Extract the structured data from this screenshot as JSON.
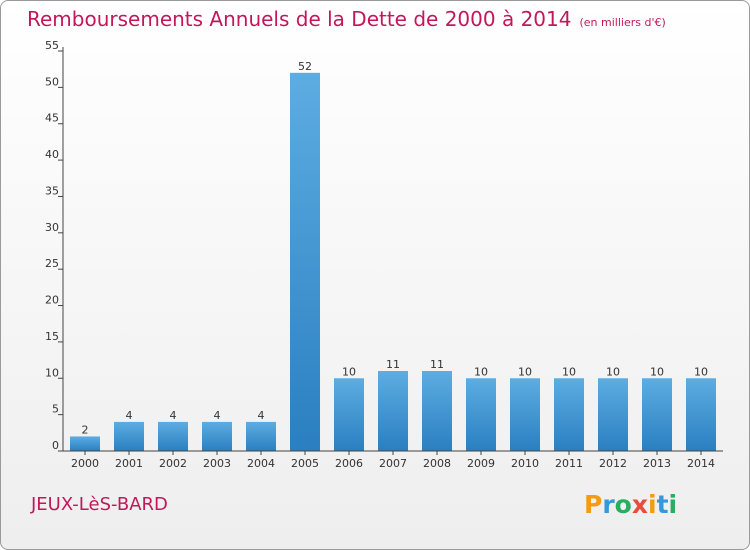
{
  "chart_data": {
    "type": "bar",
    "title": "Remboursements Annuels de la Dette de 2000 à 2014",
    "unit_note": "(en milliers d'€)",
    "categories": [
      "2000",
      "2001",
      "2002",
      "2003",
      "2004",
      "2005",
      "2006",
      "2007",
      "2008",
      "2009",
      "2010",
      "2011",
      "2012",
      "2013",
      "2014"
    ],
    "values": [
      2,
      4,
      4,
      4,
      4,
      52,
      10,
      11,
      11,
      10,
      10,
      10,
      10,
      10,
      10
    ],
    "value_labels": [
      "2",
      "4",
      "4",
      "4",
      "4",
      "52",
      "10",
      "11",
      "11",
      "10",
      "10",
      "10",
      "10",
      "10",
      "10"
    ],
    "ylim": [
      0,
      55
    ],
    "yticks": [
      0,
      5,
      10,
      15,
      20,
      25,
      30,
      35,
      40,
      45,
      50,
      55
    ],
    "ytick_labels": [
      "0",
      "5",
      "10",
      "15",
      "20",
      "25",
      "30",
      "35",
      "40",
      "45",
      "50",
      "55"
    ],
    "grid": false,
    "bar_color": "#3c9ad8"
  },
  "place_name": "JEUX-LèS-BARD",
  "logo": {
    "letters": [
      "P",
      "r",
      "o",
      "x",
      "i",
      "t",
      "i"
    ],
    "colors": [
      "#f39c12",
      "#3498db",
      "#27ae60",
      "#e74c3c",
      "#f39c12",
      "#3498db",
      "#27ae60"
    ]
  }
}
